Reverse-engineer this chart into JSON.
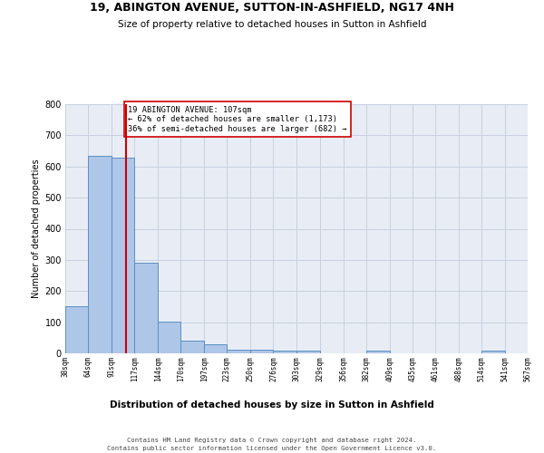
{
  "title1": "19, ABINGTON AVENUE, SUTTON-IN-ASHFIELD, NG17 4NH",
  "title2": "Size of property relative to detached houses in Sutton in Ashfield",
  "xlabel": "Distribution of detached houses by size in Sutton in Ashfield",
  "ylabel": "Number of detached properties",
  "footer1": "Contains HM Land Registry data © Crown copyright and database right 2024.",
  "footer2": "Contains public sector information licensed under the Open Government Licence v3.0.",
  "annotation_line1": "19 ABINGTON AVENUE: 107sqm",
  "annotation_line2": "← 62% of detached houses are smaller (1,173)",
  "annotation_line3": "36% of semi-detached houses are larger (682) →",
  "property_size": 107,
  "bar_edges": [
    38,
    64,
    91,
    117,
    144,
    170,
    197,
    223,
    250,
    276,
    303,
    329,
    356,
    382,
    409,
    435,
    461,
    488,
    514,
    541,
    567
  ],
  "bar_heights": [
    150,
    635,
    627,
    290,
    103,
    42,
    29,
    11,
    11,
    10,
    10,
    0,
    0,
    8,
    0,
    0,
    0,
    0,
    8,
    0,
    0
  ],
  "bar_color": "#aec6e8",
  "bar_edge_color": "#5a8fc2",
  "vline_color": "#cc0000",
  "grid_color": "#c8d0e0",
  "bg_color": "#e8edf5",
  "annotation_box_color": "#cc0000",
  "ylim": [
    0,
    800
  ],
  "yticks": [
    0,
    100,
    200,
    300,
    400,
    500,
    600,
    700,
    800
  ]
}
